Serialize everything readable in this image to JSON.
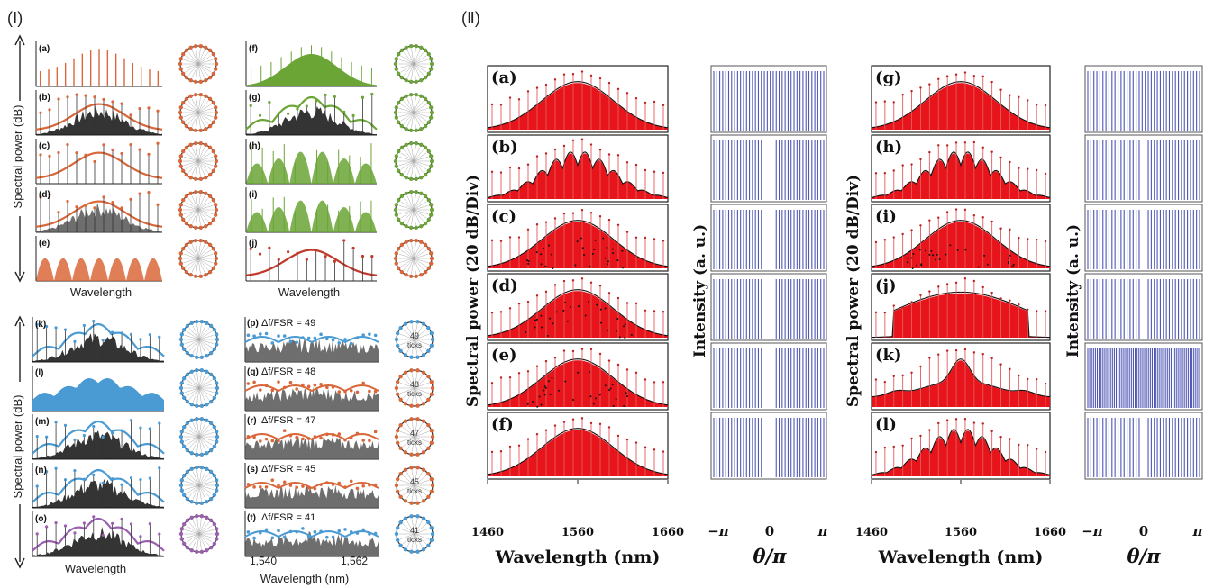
{
  "section_I_label": "(Ⅰ)",
  "section_II_label": "(Ⅱ)",
  "section_I": {
    "ylabel": "Spectral power (dB)",
    "xlabel_left": "Wavelength",
    "xlabel_right": "Wavelength",
    "xlabel_bottom_right": "Wavelength (nm)",
    "x_ticks_bottom_right": [
      "1,540",
      "1,562"
    ],
    "ring_ticks_label": "ticks",
    "top_left_panels": [
      {
        "label": "(a)",
        "style": "combs",
        "ring": "#d9673a"
      },
      {
        "label": "(b)",
        "style": "hill-black",
        "ring": "#d9673a"
      },
      {
        "label": "(c)",
        "style": "hill-open",
        "ring": "#d9673a"
      },
      {
        "label": "(d)",
        "style": "hill-gray",
        "ring": "#d9673a"
      },
      {
        "label": "(e)",
        "style": "domes-orange",
        "ring": "#d9673a"
      }
    ],
    "top_right_panels": [
      {
        "label": "(f)",
        "style": "green-hill",
        "ring": "#6aa536"
      },
      {
        "label": "(g)",
        "style": "green-black",
        "ring": "#6aa536"
      },
      {
        "label": "(h)",
        "style": "green-domes",
        "ring": "#6aa536"
      },
      {
        "label": "(i)",
        "style": "green-domes",
        "ring": "#6aa536"
      },
      {
        "label": "(j)",
        "style": "red-hill",
        "ring": "#d9673a"
      }
    ],
    "bottom_left_panels": [
      {
        "label": "(k)",
        "style": "blue-black",
        "ring": "#4a9ad4"
      },
      {
        "label": "(l)",
        "style": "blue-fill",
        "ring": "#4a9ad4"
      },
      {
        "label": "(m)",
        "style": "blue-black",
        "ring": "#4a9ad4"
      },
      {
        "label": "(n)",
        "style": "blue-black",
        "ring": "#4a9ad4"
      },
      {
        "label": "(o)",
        "style": "purple-black",
        "ring": "#9b5fb0"
      }
    ],
    "bottom_right_panels": [
      {
        "label": "(p)",
        "text": "Δf/FSR = 49",
        "ticks": "49",
        "dot": "#4a9ad4"
      },
      {
        "label": "(q)",
        "text": "Δf/FSR = 48",
        "ticks": "48",
        "dot": "#d9673a"
      },
      {
        "label": "(r)",
        "text": "Δf/FSR = 47",
        "ticks": "47",
        "dot": "#d9673a"
      },
      {
        "label": "(s)",
        "text": "Δf/FSR = 45",
        "ticks": "45",
        "dot": "#d9673a"
      },
      {
        "label": "(t)",
        "text": "Δf/FSR = 41",
        "ticks": "41",
        "dot": "#4a9ad4"
      }
    ]
  },
  "section_II": {
    "ylabel_spectrum": "Spectral power (20 dB/Div)",
    "ylabel_intensity": "Intensity (a. u.)",
    "xlabel_spectrum": "Wavelength (nm)",
    "xlabel_intensity": "θ/π",
    "x_ticks_spectrum": [
      "1460",
      "1560",
      "1660"
    ],
    "x_ticks_intensity": [
      "−π",
      "0",
      "π"
    ],
    "left_panels": [
      {
        "label": "(a)",
        "style": "smooth"
      },
      {
        "label": "(b)",
        "style": "bumps"
      },
      {
        "label": "(c)",
        "style": "dots"
      },
      {
        "label": "(d)",
        "style": "dots"
      },
      {
        "label": "(e)",
        "style": "dots"
      },
      {
        "label": "(f)",
        "style": "smooth"
      }
    ],
    "right_panels": [
      {
        "label": "(g)",
        "style": "smooth"
      },
      {
        "label": "(h)",
        "style": "bumps"
      },
      {
        "label": "(i)",
        "style": "dots"
      },
      {
        "label": "(j)",
        "style": "dome"
      },
      {
        "label": "(k)",
        "style": "spiky"
      },
      {
        "label": "(l)",
        "style": "bumps"
      }
    ]
  },
  "colors": {
    "orange": "#d9673a",
    "green": "#6aa536",
    "blue": "#4a9ad4",
    "purple": "#9b5fb0",
    "red_fill": "#e8141b",
    "pulse_blue": "#4f57b5"
  },
  "chart_data": {
    "type": "line",
    "title": "",
    "xlabel": "Wavelength (nm)",
    "ylabel": "Spectral power (20 dB/Div)",
    "xlim": [
      1460,
      1660
    ],
    "x_ticks": [
      1460,
      1560,
      1660
    ],
    "panels_II_spectrum": [
      "(a)",
      "(b)",
      "(c)",
      "(d)",
      "(e)",
      "(f)",
      "(g)",
      "(h)",
      "(i)",
      "(j)",
      "(k)",
      "(l)"
    ],
    "intensity_xlabel": "θ/π",
    "intensity_ylabel": "Intensity (a. u.)",
    "intensity_x_ticks": [
      "−π",
      "0",
      "π"
    ],
    "panels_I": [
      "(a)",
      "(b)",
      "(c)",
      "(d)",
      "(e)",
      "(f)",
      "(g)",
      "(h)",
      "(i)",
      "(j)",
      "(k)",
      "(l)",
      "(m)",
      "(n)",
      "(o)",
      "(p)",
      "(q)",
      "(r)",
      "(s)",
      "(t)"
    ],
    "delta_f_over_fsr": [
      49,
      48,
      47,
      45,
      41
    ],
    "section_I_bottom_x_ticks": [
      1540,
      1562
    ],
    "grid": false
  }
}
